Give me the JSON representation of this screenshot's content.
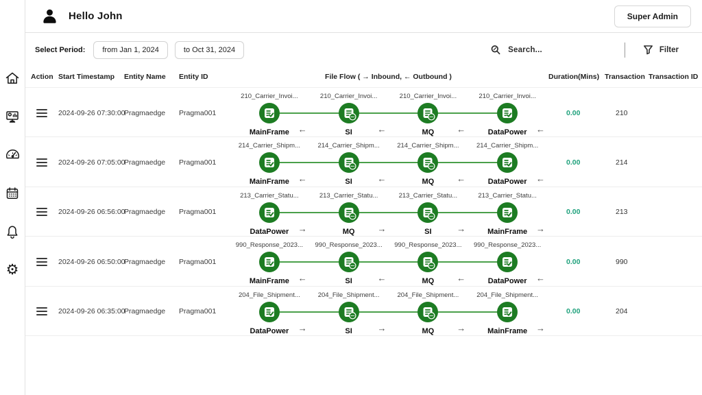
{
  "header": {
    "greeting": "Hello John",
    "role_button": "Super Admin"
  },
  "filter_bar": {
    "select_period_label": "Select Period:",
    "from_value": "from Jan 1, 2024",
    "to_value": "to Oct 31, 2024",
    "search_placeholder": "Search...",
    "filter_label": "Filter"
  },
  "sidebar": {
    "items": [
      {
        "icon": "home-icon"
      },
      {
        "icon": "monitor-dashboard-icon"
      },
      {
        "icon": "gauge-icon"
      },
      {
        "icon": "calendar-icon"
      },
      {
        "icon": "bell-icon"
      },
      {
        "icon": "gear-icon"
      }
    ]
  },
  "table": {
    "columns": [
      "Action",
      "Start Timestamp",
      "Entity Name",
      "Entity ID",
      "File Flow ( → Inbound, ← Outbound )",
      "Duration(Mins)",
      "Transaction",
      "Transaction ID"
    ],
    "rows": [
      {
        "timestamp": "2024-09-26 07:30:00",
        "entity_name": "Pragmaedge",
        "entity_id": "Pragma001",
        "file_label": "210_Carrier_Invoi...",
        "arrow": "←",
        "direction": "outbound",
        "nodes": [
          {
            "name": "MainFrame",
            "state": "done"
          },
          {
            "name": "SI",
            "state": "pending"
          },
          {
            "name": "MQ",
            "state": "pending"
          },
          {
            "name": "DataPower",
            "state": "done"
          }
        ],
        "duration": "0.00",
        "transaction": "210",
        "transaction_id": ""
      },
      {
        "timestamp": "2024-09-26 07:05:00",
        "entity_name": "Pragmaedge",
        "entity_id": "Pragma001",
        "file_label": "214_Carrier_Shipm...",
        "arrow": "←",
        "direction": "outbound",
        "nodes": [
          {
            "name": "MainFrame",
            "state": "done"
          },
          {
            "name": "SI",
            "state": "pending"
          },
          {
            "name": "MQ",
            "state": "pending"
          },
          {
            "name": "DataPower",
            "state": "done"
          }
        ],
        "duration": "0.00",
        "transaction": "214",
        "transaction_id": ""
      },
      {
        "timestamp": "2024-09-26 06:56:00",
        "entity_name": "Pragmaedge",
        "entity_id": "Pragma001",
        "file_label": "213_Carrier_Statu...",
        "arrow": "→",
        "direction": "inbound",
        "nodes": [
          {
            "name": "DataPower",
            "state": "done"
          },
          {
            "name": "MQ",
            "state": "pending"
          },
          {
            "name": "SI",
            "state": "pending"
          },
          {
            "name": "MainFrame",
            "state": "done"
          }
        ],
        "duration": "0.00",
        "transaction": "213",
        "transaction_id": ""
      },
      {
        "timestamp": "2024-09-26 06:50:00",
        "entity_name": "Pragmaedge",
        "entity_id": "Pragma001",
        "file_label": "990_Response_2023...",
        "arrow": "←",
        "direction": "outbound",
        "nodes": [
          {
            "name": "MainFrame",
            "state": "done"
          },
          {
            "name": "SI",
            "state": "pending"
          },
          {
            "name": "MQ",
            "state": "pending"
          },
          {
            "name": "DataPower",
            "state": "done"
          }
        ],
        "duration": "0.00",
        "transaction": "990",
        "transaction_id": ""
      },
      {
        "timestamp": "2024-09-26 06:35:00",
        "entity_name": "Pragmaedge",
        "entity_id": "Pragma001",
        "file_label": "204_File_Shipment...",
        "arrow": "→",
        "direction": "inbound",
        "nodes": [
          {
            "name": "DataPower",
            "state": "done"
          },
          {
            "name": "SI",
            "state": "pending"
          },
          {
            "name": "MQ",
            "state": "pending"
          },
          {
            "name": "MainFrame",
            "state": "done"
          }
        ],
        "duration": "0.00",
        "transaction": "204",
        "transaction_id": ""
      }
    ]
  },
  "colors": {
    "node_green": "#1d7c23",
    "line_green": "#4aa04a",
    "duration_teal": "#1fa17c"
  }
}
